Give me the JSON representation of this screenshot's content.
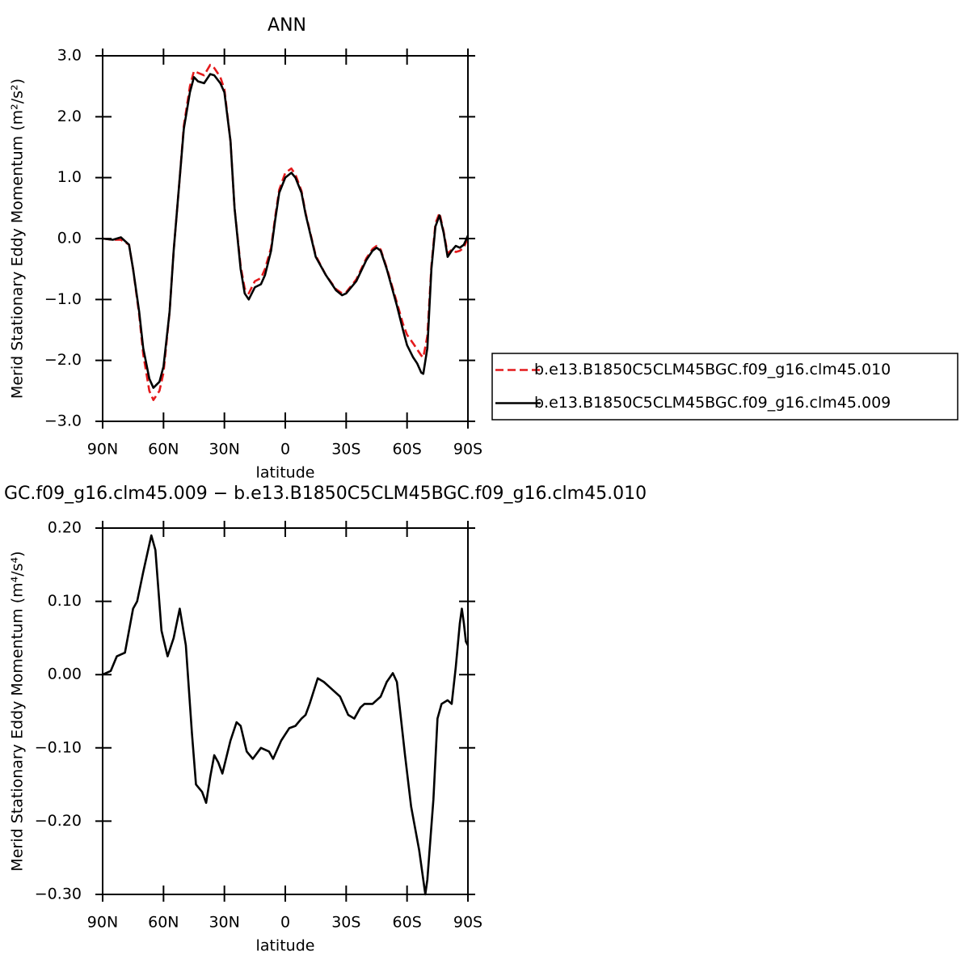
{
  "chart_data": [
    {
      "type": "line",
      "title": "ANN",
      "xlabel": "latitude",
      "ylabel": "Merid Stationary Eddy Momentum (m²/s²)",
      "x": [
        90,
        85,
        81,
        77,
        75,
        72,
        70,
        67,
        65,
        62,
        60,
        57,
        55,
        52,
        50,
        47,
        45,
        43,
        40,
        37,
        35,
        32,
        30,
        27,
        25,
        22,
        20,
        18,
        15,
        12,
        10,
        7,
        5,
        3,
        0,
        -3,
        -5,
        -8,
        -10,
        -15,
        -20,
        -25,
        -28,
        -30,
        -35,
        -40,
        -43,
        -45,
        -47,
        -50,
        -55,
        -58,
        -60,
        -63,
        -65,
        -67,
        -68,
        -70,
        -72,
        -74,
        -76,
        -78,
        -80,
        -82,
        -84,
        -86,
        -88,
        -90
      ],
      "series": [
        {
          "name": "b.e13.B1850C5CLM45BGC.f09_g16.clm45.010",
          "color": "#e41a1c",
          "dash": true,
          "values": [
            0.0,
            -0.02,
            -0.02,
            -0.1,
            -0.5,
            -1.25,
            -1.9,
            -2.5,
            -2.65,
            -2.5,
            -2.2,
            -1.2,
            -0.2,
            1.0,
            1.85,
            2.5,
            2.75,
            2.72,
            2.68,
            2.85,
            2.8,
            2.65,
            2.45,
            1.6,
            0.5,
            -0.45,
            -0.82,
            -0.9,
            -0.7,
            -0.65,
            -0.5,
            -0.15,
            0.35,
            0.8,
            1.08,
            1.15,
            1.05,
            0.78,
            0.42,
            -0.28,
            -0.6,
            -0.83,
            -0.9,
            -0.88,
            -0.67,
            -0.32,
            -0.17,
            -0.12,
            -0.18,
            -0.48,
            -1.05,
            -1.4,
            -1.58,
            -1.72,
            -1.82,
            -1.92,
            -1.95,
            -1.6,
            -0.45,
            0.25,
            0.42,
            0.12,
            -0.25,
            -0.18,
            -0.22,
            -0.2,
            -0.15,
            0.02
          ]
        },
        {
          "name": "b.e13.B1850C5CLM45BGC.f09_g16.clm45.009",
          "color": "#000000",
          "dash": false,
          "values": [
            0.0,
            -0.02,
            0.02,
            -0.1,
            -0.5,
            -1.2,
            -1.8,
            -2.3,
            -2.45,
            -2.35,
            -2.1,
            -1.2,
            -0.2,
            1.0,
            1.8,
            2.4,
            2.65,
            2.58,
            2.55,
            2.7,
            2.68,
            2.55,
            2.4,
            1.6,
            0.5,
            -0.5,
            -0.9,
            -1.0,
            -0.8,
            -0.75,
            -0.6,
            -0.2,
            0.3,
            0.75,
            1.0,
            1.08,
            1.0,
            0.75,
            0.4,
            -0.3,
            -0.6,
            -0.85,
            -0.93,
            -0.9,
            -0.7,
            -0.35,
            -0.2,
            -0.15,
            -0.2,
            -0.5,
            -1.1,
            -1.5,
            -1.75,
            -1.95,
            -2.05,
            -2.2,
            -2.22,
            -1.8,
            -0.5,
            0.2,
            0.38,
            0.1,
            -0.3,
            -0.2,
            -0.12,
            -0.15,
            -0.1,
            0.05
          ]
        }
      ],
      "xlim": [
        90,
        -90
      ],
      "xticks": [
        {
          "value": 90,
          "label": "90N"
        },
        {
          "value": 60,
          "label": "60N"
        },
        {
          "value": 30,
          "label": "30N"
        },
        0,
        {
          "value": -30,
          "label": "30S"
        },
        {
          "value": -60,
          "label": "60S"
        },
        {
          "value": -90,
          "label": "90S"
        }
      ],
      "ylim": [
        -3,
        3
      ],
      "yticks": [
        {
          "value": 3,
          "label": "3.0"
        },
        {
          "value": 2,
          "label": "2.0"
        },
        {
          "value": 1,
          "label": "1.0"
        },
        {
          "value": 0,
          "label": "0.0"
        },
        {
          "value": -1,
          "label": "−1.0"
        },
        {
          "value": -2,
          "label": "−2.0"
        },
        {
          "value": -3,
          "label": "−3.0"
        }
      ],
      "legend": "right"
    },
    {
      "type": "line",
      "title": "GC.f09_g16.clm45.009 − b.e13.B1850C5CLM45BGC.f09_g16.clm45.010",
      "xlabel": "latitude",
      "ylabel": "Merid Stationary Eddy Momentum (m⁴/s⁴)",
      "x": [
        90,
        86,
        83,
        79,
        75,
        73,
        70,
        66,
        64,
        61,
        58,
        55,
        52,
        49,
        46,
        44,
        41,
        39,
        37,
        35,
        33,
        31,
        27,
        24,
        22,
        19,
        16,
        12,
        8,
        6,
        2,
        -2,
        -5,
        -8,
        -10,
        -12,
        -16,
        -19,
        -23,
        -27,
        -31,
        -34,
        -37,
        -39,
        -43,
        -47,
        -50,
        -53,
        -55,
        -57,
        -59,
        -62,
        -66,
        -67,
        -69,
        -70,
        -73,
        -75,
        -77,
        -80,
        -82,
        -84,
        -86,
        -87,
        -88,
        -89,
        -90
      ],
      "series": [
        {
          "color": "#000000",
          "values": [
            0.0,
            0.005,
            0.025,
            0.03,
            0.09,
            0.1,
            0.14,
            0.19,
            0.17,
            0.06,
            0.025,
            0.05,
            0.09,
            0.04,
            -0.08,
            -0.15,
            -0.16,
            -0.175,
            -0.14,
            -0.11,
            -0.12,
            -0.135,
            -0.09,
            -0.065,
            -0.07,
            -0.105,
            -0.115,
            -0.1,
            -0.105,
            -0.115,
            -0.09,
            -0.073,
            -0.07,
            -0.06,
            -0.055,
            -0.04,
            -0.005,
            -0.01,
            -0.02,
            -0.03,
            -0.055,
            -0.06,
            -0.045,
            -0.04,
            -0.04,
            -0.03,
            -0.01,
            0.002,
            -0.01,
            -0.06,
            -0.11,
            -0.18,
            -0.24,
            -0.26,
            -0.3,
            -0.28,
            -0.17,
            -0.06,
            -0.04,
            -0.035,
            -0.04,
            0.01,
            0.07,
            0.09,
            0.07,
            0.045,
            0.04
          ]
        }
      ],
      "xlim": [
        90,
        -90
      ],
      "xticks": [
        {
          "value": 90,
          "label": "90N"
        },
        {
          "value": 60,
          "label": "60N"
        },
        {
          "value": 30,
          "label": "30N"
        },
        0,
        {
          "value": -30,
          "label": "30S"
        },
        {
          "value": -60,
          "label": "60S"
        },
        {
          "value": -90,
          "label": "90S"
        }
      ],
      "ylim": [
        -0.3,
        0.2
      ],
      "yticks": [
        {
          "value": 0.2,
          "label": "0.20"
        },
        {
          "value": 0.1,
          "label": "0.10"
        },
        {
          "value": 0,
          "label": "0.00"
        },
        {
          "value": -0.1,
          "label": "−0.10"
        },
        {
          "value": -0.2,
          "label": "−0.20"
        },
        {
          "value": -0.3,
          "label": "−0.30"
        }
      ]
    }
  ]
}
